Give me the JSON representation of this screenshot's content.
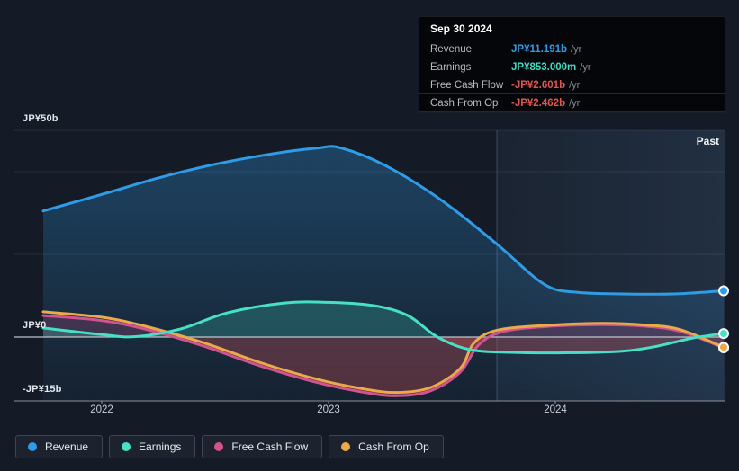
{
  "tooltip": {
    "date": "Sep 30 2024",
    "rows": [
      {
        "label": "Revenue",
        "value": "JP¥11.191b",
        "suffix": "/yr",
        "color": "#2f9ce8"
      },
      {
        "label": "Earnings",
        "value": "JP¥853.000m",
        "suffix": "/yr",
        "color": "#40ddc1"
      },
      {
        "label": "Free Cash Flow",
        "value": "-JP¥2.601b",
        "suffix": "/yr",
        "color": "#e2564e"
      },
      {
        "label": "Cash From Op",
        "value": "-JP¥2.462b",
        "suffix": "/yr",
        "color": "#e2564e"
      }
    ]
  },
  "legend": {
    "items": [
      {
        "label": "Revenue",
        "color": "#2f9ce8"
      },
      {
        "label": "Earnings",
        "color": "#46e0c4"
      },
      {
        "label": "Free Cash Flow",
        "color": "#d1538f"
      },
      {
        "label": "Cash From Op",
        "color": "#eba94b"
      }
    ]
  },
  "chart_data": {
    "type": "area",
    "unit": "JP¥ billions per year",
    "x_range": [
      2021.742,
      2024.742
    ],
    "ylim": [
      -15.4,
      50
    ],
    "grid_on": true,
    "gridline_values": [
      50,
      40,
      20
    ],
    "y_axis_labels": [
      {
        "text": "JP¥50b",
        "value": 50
      },
      {
        "text": "JP¥0",
        "value": 0
      },
      {
        "text": "-JP¥15b",
        "value": -15.4
      }
    ],
    "x_ticks": [
      {
        "label": "2022",
        "t": 2022
      },
      {
        "label": "2023",
        "t": 2023
      },
      {
        "label": "2024",
        "t": 2024
      }
    ],
    "past_region": {
      "label": "Past",
      "start_t": 2023.742
    },
    "negative_fill_color": "rgba(222,82,88,0.30)",
    "series": [
      {
        "name": "Revenue",
        "color": "#2f9ce8",
        "fill": "to-bottom",
        "fill_color": "url(#gradRevenue)",
        "points": [
          [
            2021.742,
            30.5
          ],
          [
            2022.0,
            34.5
          ],
          [
            2022.25,
            38.5
          ],
          [
            2022.5,
            41.8
          ],
          [
            2022.75,
            44.3
          ],
          [
            2022.95,
            45.7
          ],
          [
            2023.05,
            45.8
          ],
          [
            2023.25,
            41.5
          ],
          [
            2023.5,
            33.0
          ],
          [
            2023.742,
            22.5
          ],
          [
            2023.95,
            12.8
          ],
          [
            2024.1,
            10.8
          ],
          [
            2024.35,
            10.4
          ],
          [
            2024.55,
            10.5
          ],
          [
            2024.742,
            11.191
          ]
        ]
      },
      {
        "name": "Free Cash Flow",
        "color": "#d1538f",
        "fill": "to-zero",
        "fill_color": "rgba(209,83,143,0.22)",
        "points": [
          [
            2021.742,
            5.2
          ],
          [
            2022.0,
            4.0
          ],
          [
            2022.2,
            1.8
          ],
          [
            2022.45,
            -2.2
          ],
          [
            2022.7,
            -7.0
          ],
          [
            2022.95,
            -11.0
          ],
          [
            2023.15,
            -13.3
          ],
          [
            2023.3,
            -14.2
          ],
          [
            2023.45,
            -13.0
          ],
          [
            2023.58,
            -8.5
          ],
          [
            2023.66,
            -2.0
          ],
          [
            2023.76,
            1.2
          ],
          [
            2023.95,
            2.5
          ],
          [
            2024.2,
            3.0
          ],
          [
            2024.4,
            2.6
          ],
          [
            2024.55,
            1.4
          ],
          [
            2024.742,
            -2.601
          ]
        ]
      },
      {
        "name": "Cash From Op",
        "color": "#eba94b",
        "fill": "none",
        "fill_color": "none",
        "points": [
          [
            2021.742,
            6.1
          ],
          [
            2022.0,
            4.8
          ],
          [
            2022.2,
            2.5
          ],
          [
            2022.45,
            -1.4
          ],
          [
            2022.7,
            -6.2
          ],
          [
            2022.95,
            -10.2
          ],
          [
            2023.15,
            -12.5
          ],
          [
            2023.3,
            -13.4
          ],
          [
            2023.45,
            -12.2
          ],
          [
            2023.58,
            -7.6
          ],
          [
            2023.64,
            -1.5
          ],
          [
            2023.74,
            1.6
          ],
          [
            2023.95,
            2.8
          ],
          [
            2024.2,
            3.3
          ],
          [
            2024.4,
            2.9
          ],
          [
            2024.55,
            1.8
          ],
          [
            2024.742,
            -2.462
          ]
        ]
      },
      {
        "name": "Earnings",
        "color": "#46e0c4",
        "fill": "to-zero",
        "fill_color": "rgba(70,224,196,0.22)",
        "points": [
          [
            2021.742,
            2.2
          ],
          [
            2022.0,
            0.6
          ],
          [
            2022.15,
            0.1
          ],
          [
            2022.35,
            2.0
          ],
          [
            2022.55,
            5.8
          ],
          [
            2022.8,
            8.2
          ],
          [
            2023.0,
            8.4
          ],
          [
            2023.2,
            7.6
          ],
          [
            2023.35,
            5.2
          ],
          [
            2023.48,
            0.0
          ],
          [
            2023.62,
            -3.0
          ],
          [
            2023.8,
            -3.7
          ],
          [
            2024.05,
            -3.8
          ],
          [
            2024.3,
            -3.4
          ],
          [
            2024.45,
            -2.2
          ],
          [
            2024.6,
            -0.3
          ],
          [
            2024.742,
            0.853
          ]
        ]
      }
    ]
  }
}
